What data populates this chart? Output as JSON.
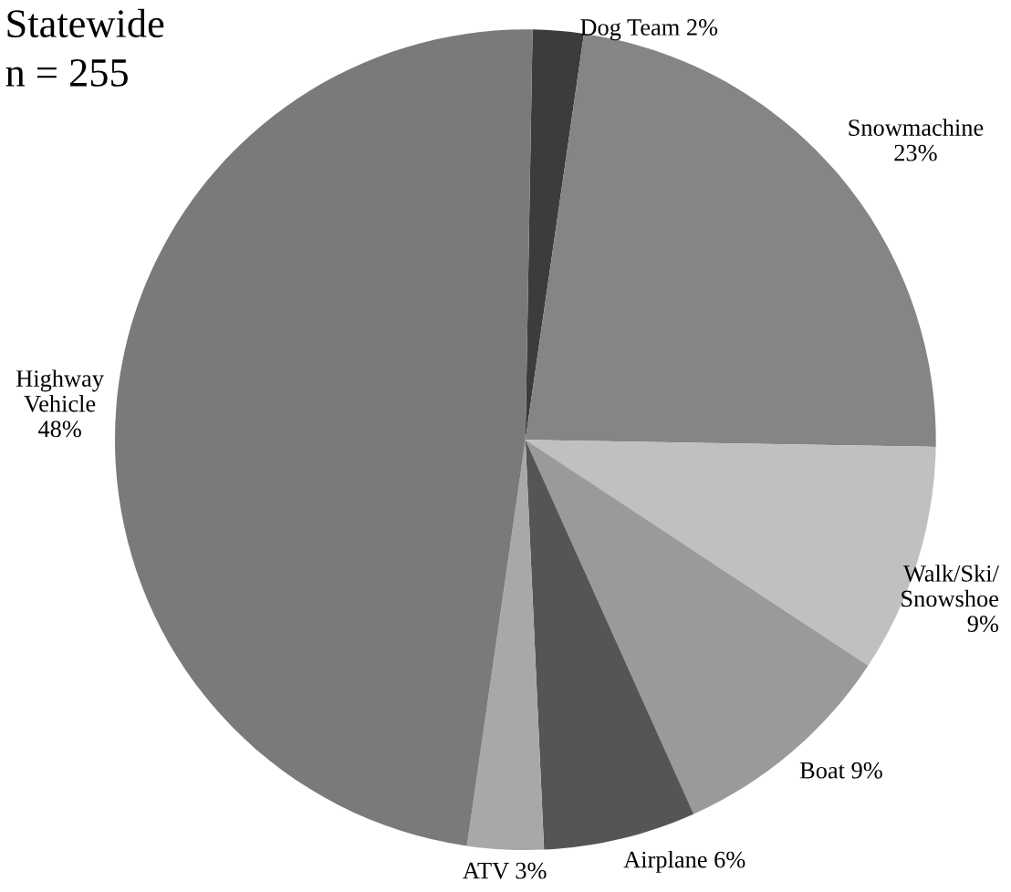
{
  "chart_data": {
    "type": "pie",
    "title": "Statewide",
    "subtitle": "n = 255",
    "categories": [
      "Dog Team",
      "Snowmachine",
      "Walk/Ski/\nSnowshoe",
      "Boat",
      "Airplane",
      "ATV",
      "Highway\nVehicle"
    ],
    "values": [
      2,
      23,
      9,
      9,
      6,
      3,
      48
    ],
    "value_labels": [
      "2%",
      "23%",
      "9%",
      "9%",
      "6%",
      "3%",
      "48%"
    ],
    "colors": [
      "#3c3c3c",
      "#858585",
      "#c0c0c0",
      "#9a9a9a",
      "#555555",
      "#a8a8a8",
      "#7a7a7a"
    ]
  }
}
